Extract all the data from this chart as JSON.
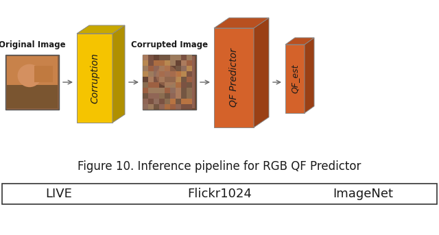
{
  "title": "Figure 10. Inference pipeline for RGB QF Predictor",
  "title_fontsize": 12,
  "bg_color": "#ffffff",
  "footer_labels": [
    "LIVE",
    "Flickr1024",
    "ImageNet"
  ],
  "footer_fontsize": 13,
  "label_orig": "Original Image",
  "label_corrupt": "Corrupted Image",
  "corruption_label": "Corruption",
  "qf_pred_label": "QF Predictor",
  "qf_est_label": "QF_est",
  "yellow_face_color": "#F5C400",
  "yellow_top_color": "#C8A800",
  "yellow_side_color": "#B09000",
  "orange_face_color": "#D4622A",
  "orange_top_color": "#B85020",
  "orange_side_color": "#9A4015",
  "arrow_color": "#666666",
  "text_color": "#1a1a1a",
  "label_text_color": "#1a1a1a",
  "box_edge_color": "#888888",
  "img_border_color": "#555555",
  "footer_border_color": "#333333"
}
